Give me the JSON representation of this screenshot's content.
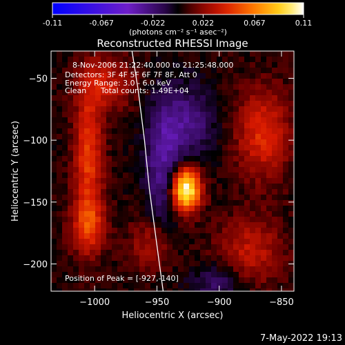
{
  "colorbar": {
    "min": -0.11,
    "max": 0.11,
    "tick_labels": [
      "-0.11",
      "-0.067",
      "-0.022",
      "0.022",
      "0.067",
      "0.11"
    ],
    "tick_values": [
      -0.11,
      -0.067,
      -0.022,
      0.022,
      0.067,
      0.11
    ],
    "units_label": "(photons cm⁻² s⁻¹ asec⁻²)",
    "colormap": "rhessi_diverging"
  },
  "chart_data": {
    "type": "heatmap",
    "title": "Reconstructed RHESSI Image",
    "xlabel": "Heliocentric X (arcsec)",
    "ylabel": "Heliocentric Y (arcsec)",
    "xlim": [
      -1035,
      -840
    ],
    "ylim": [
      -222,
      -28
    ],
    "x_ticks": [
      -1000,
      -950,
      -900,
      -850
    ],
    "y_ticks": [
      -50,
      -100,
      -150,
      -200
    ],
    "x_tick_labels": [
      "−1000",
      "−950",
      "−900",
      "−850"
    ],
    "y_tick_labels": [
      "−50",
      "−100",
      "−150",
      "−200"
    ],
    "peak_position": [
      -927,
      -140
    ],
    "peak_value": 0.11,
    "sources": [
      {
        "x": -927,
        "y": -140,
        "amplitude": 0.11,
        "sx": 8,
        "sy": 12
      },
      {
        "x": -1005,
        "y": -115,
        "amplitude": 0.045,
        "sx": 8,
        "sy": 40
      },
      {
        "x": -1005,
        "y": -170,
        "amplitude": 0.035,
        "sx": 10,
        "sy": 15
      },
      {
        "x": -865,
        "y": -95,
        "amplitude": 0.04,
        "sx": 15,
        "sy": 25
      },
      {
        "x": -875,
        "y": -190,
        "amplitude": 0.03,
        "sx": 18,
        "sy": 20
      },
      {
        "x": -955,
        "y": -185,
        "amplitude": 0.025,
        "sx": 12,
        "sy": 15
      },
      {
        "x": -990,
        "y": -55,
        "amplitude": 0.03,
        "sx": 15,
        "sy": 15
      },
      {
        "x": -925,
        "y": -85,
        "amplitude": -0.03,
        "sx": 15,
        "sy": 20
      },
      {
        "x": -945,
        "y": -120,
        "amplitude": -0.035,
        "sx": 10,
        "sy": 35
      },
      {
        "x": -900,
        "y": -215,
        "amplitude": -0.025,
        "sx": 15,
        "sy": 10
      }
    ],
    "limb_curve": [
      [
        -970,
        -28
      ],
      [
        -965,
        -60
      ],
      [
        -960,
        -100
      ],
      [
        -956,
        -140
      ],
      [
        -952,
        -170
      ],
      [
        -948,
        -200
      ],
      [
        -945,
        -222
      ]
    ],
    "grid": false,
    "legend": "none"
  },
  "info": {
    "time_range": "8-Nov-2006 21:22:40.000 to 21:25:48.000",
    "detectors": "Detectors: 3F 4F 5F 6F 7F 8F, Att 0",
    "energy_range": "Energy Range: 3.0 - 6.0 keV",
    "clean_label": "Clean",
    "total_counts": "Total counts: 1.49E+04",
    "peak_label": "Position of Peak = [-927,-140]"
  },
  "footer": {
    "timestamp": "7-May-2022 19:13"
  },
  "colors": {
    "background": "#000000",
    "text": "#ffffff",
    "limb": "#ffffff"
  }
}
